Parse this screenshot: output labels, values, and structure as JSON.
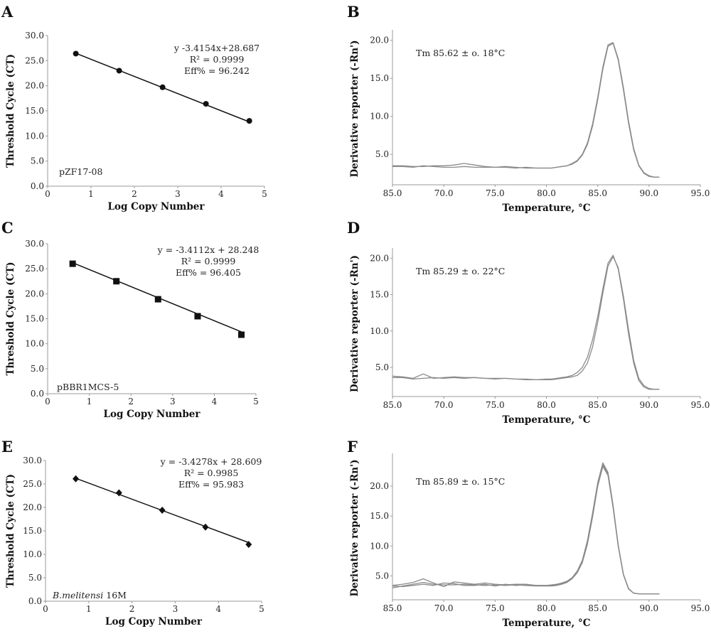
{
  "panels": [
    {
      "id": "A",
      "letter": "A",
      "chart_data": {
        "type": "scatter",
        "title": "",
        "xlabel": "Log Copy Number",
        "ylabel": "Threshold Cycle (CT)",
        "xlim": [
          0,
          5
        ],
        "ylim": [
          0,
          30
        ],
        "xticks": [
          "0",
          "1",
          "2",
          "3",
          "4",
          "5"
        ],
        "yticks": [
          "0.0",
          "5.0",
          "10.0",
          "15.0",
          "20.0",
          "25.0",
          "30.0"
        ],
        "marker": "circle",
        "grid": false,
        "x": [
          0.65,
          1.65,
          2.65,
          3.65,
          4.65
        ],
        "y": [
          26.4,
          23.0,
          19.7,
          16.4,
          13.0
        ],
        "fit_line": {
          "slope": -3.4154,
          "intercept": 28.687
        },
        "annotations": [
          "y -3.4154x+28.687",
          "R² = 0.9999",
          "Eff% = 96.242"
        ],
        "sample_label": "pZF17-08",
        "sample_italic": ""
      }
    },
    {
      "id": "B",
      "letter": "B",
      "chart_data": {
        "type": "line",
        "title": "",
        "xlabel": "Temperature, °C",
        "ylabel": "Derivative reporter (-Rn')",
        "xticks": [
          "85.0",
          "70.0",
          "75.0",
          "80.0",
          "85.0",
          "90.0",
          "95.0"
        ],
        "ytick_values": [
          5,
          10,
          15,
          20
        ],
        "yticks": [
          "5.0",
          "10.0",
          "15.0",
          "20.0"
        ],
        "ylim": [
          1,
          21
        ],
        "grid": false,
        "line_color": "#8a8a8a",
        "x": [
          65,
          66,
          67,
          68,
          69,
          70,
          71,
          72,
          73,
          74,
          75,
          76,
          77,
          78,
          79,
          80,
          80.5,
          81,
          81.5,
          82,
          82.5,
          83,
          83.5,
          84,
          84.5,
          85,
          85.5,
          86,
          86.5,
          87,
          87.5,
          88,
          88.5,
          89,
          89.5,
          90,
          90.5,
          91
        ],
        "series": [
          {
            "values": [
              3.5,
              3.5,
              3.4,
              3.4,
              3.5,
              3.5,
              3.6,
              3.8,
              3.6,
              3.4,
              3.3,
              3.4,
              3.3,
              3.2,
              3.2,
              3.2,
              3.2,
              3.3,
              3.4,
              3.5,
              3.8,
              4.2,
              5.0,
              6.5,
              9.0,
              12.5,
              16.5,
              19.4,
              19.7,
              17.6,
              13.8,
              9.4,
              5.8,
              3.6,
              2.6,
              2.2,
              2.0,
              2.0
            ]
          },
          {
            "values": [
              3.4,
              3.4,
              3.3,
              3.5,
              3.4,
              3.3,
              3.3,
              3.4,
              3.3,
              3.3,
              3.3,
              3.3,
              3.2,
              3.3,
              3.2,
              3.2,
              3.2,
              3.3,
              3.4,
              3.5,
              3.7,
              4.1,
              4.9,
              6.3,
              8.7,
              12.2,
              16.2,
              19.2,
              19.6,
              17.4,
              13.5,
              9.1,
              5.6,
              3.5,
              2.5,
              2.1,
              2.0,
              2.0
            ]
          }
        ],
        "annotations": [
          "Tm 85.62 ± o. 18°C"
        ]
      }
    },
    {
      "id": "C",
      "letter": "C",
      "chart_data": {
        "type": "scatter",
        "title": "",
        "xlabel": "Log Copy Number",
        "ylabel": "Threshold Cycle (CT)",
        "xlim": [
          0,
          5
        ],
        "ylim": [
          0,
          30
        ],
        "xticks": [
          "0",
          "1",
          "2",
          "3",
          "4",
          "5"
        ],
        "yticks": [
          "0.0",
          "5.0",
          "10.0",
          "15.0",
          "20.0",
          "25.0",
          "30.0"
        ],
        "marker": "square",
        "grid": false,
        "x": [
          0.6,
          1.65,
          2.65,
          3.6,
          4.65
        ],
        "y": [
          26.0,
          22.5,
          18.9,
          15.5,
          11.8
        ],
        "fit_line": {
          "slope": -3.4112,
          "intercept": 28.248
        },
        "annotations": [
          "y = -3.4112x + 28.248",
          "R² = 0.9999",
          "Eff% = 96.405"
        ],
        "sample_label": "pBBR1MCS-5",
        "sample_italic": ""
      }
    },
    {
      "id": "D",
      "letter": "D",
      "chart_data": {
        "type": "line",
        "title": "",
        "xlabel": "Temperature, °C",
        "ylabel": "Derivative reporter (-Rn')",
        "xticks": [
          "85.0",
          "70.0",
          "75.0",
          "80.0",
          "85.0",
          "90.0",
          "95.0"
        ],
        "ytick_values": [
          5,
          10,
          15,
          20
        ],
        "yticks": [
          "5.0",
          "10.0",
          "15.0",
          "20.0"
        ],
        "ylim": [
          1,
          21
        ],
        "grid": false,
        "line_color": "#8a8a8a",
        "x": [
          65,
          66,
          67,
          68,
          69,
          70,
          71,
          72,
          73,
          74,
          75,
          76,
          77,
          78,
          79,
          80,
          80.5,
          81,
          81.5,
          82,
          82.5,
          83,
          83.5,
          84,
          84.5,
          85,
          85.5,
          86,
          86.5,
          87,
          87.5,
          88,
          88.5,
          89,
          89.5,
          90,
          90.5,
          91
        ],
        "series": [
          {
            "values": [
              3.8,
              3.7,
              3.5,
              4.1,
              3.5,
              3.6,
              3.7,
              3.6,
              3.6,
              3.5,
              3.5,
              3.5,
              3.4,
              3.4,
              3.3,
              3.4,
              3.4,
              3.5,
              3.6,
              3.7,
              3.9,
              4.3,
              5.0,
              6.4,
              8.8,
              12.0,
              15.8,
              19.3,
              20.4,
              18.5,
              14.4,
              9.6,
              5.6,
              3.2,
              2.3,
              2.0,
              2.0,
              2.0
            ]
          },
          {
            "values": [
              3.6,
              3.6,
              3.4,
              3.5,
              3.6,
              3.5,
              3.6,
              3.5,
              3.6,
              3.5,
              3.4,
              3.5,
              3.4,
              3.3,
              3.3,
              3.3,
              3.3,
              3.4,
              3.5,
              3.6,
              3.7,
              3.9,
              4.5,
              5.6,
              7.8,
              11.2,
              15.2,
              18.9,
              20.2,
              18.7,
              14.8,
              10.2,
              6.0,
              3.5,
              2.5,
              2.1,
              2.0,
              2.0
            ]
          }
        ],
        "annotations": [
          "Tm 85.29 ± o. 22°C"
        ]
      }
    },
    {
      "id": "E",
      "letter": "E",
      "chart_data": {
        "type": "scatter",
        "title": "",
        "xlabel": "Log Copy Number",
        "ylabel": "Threshold Cycle (CT)",
        "xlim": [
          0,
          5
        ],
        "ylim": [
          0,
          30
        ],
        "xticks": [
          "0",
          "1",
          "2",
          "3",
          "4",
          "5"
        ],
        "yticks": [
          "0.0",
          "5.0",
          "10.0",
          "15.0",
          "20.0",
          "25.0",
          "30.0"
        ],
        "marker": "diamond",
        "grid": false,
        "x": [
          0.7,
          1.7,
          2.7,
          3.7,
          4.7
        ],
        "y": [
          26.1,
          23.1,
          19.4,
          15.8,
          12.1
        ],
        "fit_line": {
          "slope": -3.4278,
          "intercept": 28.609
        },
        "annotations": [
          "y = -3.4278x + 28.609",
          "R² = 0.9985",
          "Eff% = 95.983"
        ],
        "sample_label": "16M",
        "sample_italic": "B.melitensi"
      }
    },
    {
      "id": "F",
      "letter": "F",
      "chart_data": {
        "type": "line",
        "title": "",
        "xlabel": "Temperature, °C",
        "ylabel": "Derivative reporter (-Rn')",
        "xticks": [
          "85.0",
          "70.0",
          "75.0",
          "80.0",
          "85.0",
          "90.0",
          "95.0"
        ],
        "ytick_values": [
          5,
          10,
          15,
          20
        ],
        "yticks": [
          "5.0",
          "10.0",
          "15.0",
          "20.0"
        ],
        "ylim": [
          1,
          25
        ],
        "grid": false,
        "line_color": "#8a8a8a",
        "x": [
          65,
          66,
          67,
          68,
          69,
          70,
          71,
          72,
          73,
          74,
          75,
          76,
          77,
          78,
          79,
          80,
          80.5,
          81,
          81.5,
          82,
          82.5,
          83,
          83.5,
          84,
          84.5,
          85,
          85.5,
          86,
          86.5,
          87,
          87.5,
          88,
          88.5,
          89,
          89.5,
          90,
          90.5,
          91
        ],
        "series": [
          {
            "values": [
              3.4,
              3.6,
              3.9,
              4.5,
              3.8,
              3.2,
              4.0,
              3.8,
              3.6,
              3.8,
              3.6,
              3.5,
              3.6,
              3.6,
              3.4,
              3.4,
              3.4,
              3.5,
              3.7,
              4.0,
              4.6,
              5.6,
              7.4,
              10.6,
              15.2,
              20.4,
              23.6,
              22.0,
              16.5,
              10.0,
              5.2,
              2.8,
              2.1,
              2.0,
              2.0,
              2.0,
              2.0,
              2.0
            ]
          },
          {
            "values": [
              3.0,
              3.3,
              3.6,
              3.9,
              3.6,
              3.5,
              3.5,
              3.6,
              3.5,
              3.4,
              3.5,
              3.4,
              3.5,
              3.4,
              3.3,
              3.3,
              3.3,
              3.4,
              3.6,
              3.9,
              4.5,
              5.5,
              7.2,
              10.3,
              14.8,
              20.0,
              23.3,
              21.8,
              16.4,
              10.0,
              5.2,
              2.8,
              2.1,
              2.0,
              2.0,
              2.0,
              2.0,
              2.0
            ]
          },
          {
            "values": [
              3.3,
              3.2,
              3.4,
              3.6,
              3.4,
              3.8,
              3.7,
              3.4,
              3.4,
              3.6,
              3.3,
              3.6,
              3.4,
              3.5,
              3.4,
              3.4,
              3.5,
              3.6,
              3.8,
              4.1,
              4.7,
              5.8,
              7.6,
              10.9,
              15.5,
              20.6,
              23.9,
              22.3,
              16.8,
              10.2,
              5.3,
              2.9,
              2.1,
              2.0,
              2.0,
              2.0,
              2.0,
              2.0
            ]
          }
        ],
        "annotations": [
          "Tm 85.89 ± o. 15°C"
        ]
      }
    }
  ]
}
